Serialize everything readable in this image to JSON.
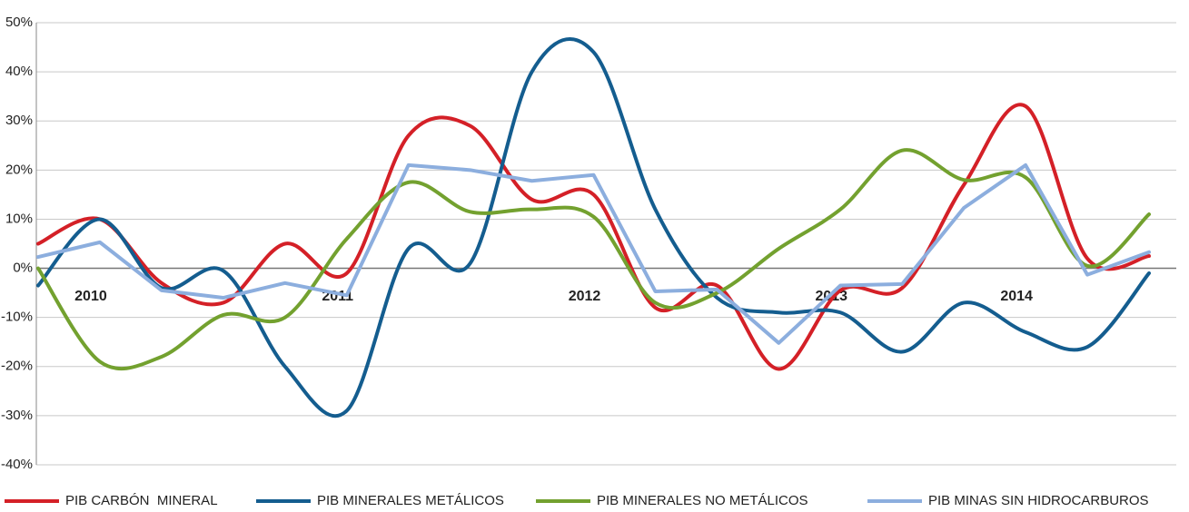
{
  "chart_data": {
    "type": "line",
    "categories": [
      null,
      "2010",
      null,
      null,
      null,
      "2011",
      null,
      null,
      null,
      "2012",
      null,
      null,
      null,
      "2013",
      null,
      null,
      "2014",
      null,
      null
    ],
    "series": [
      {
        "name": "PIB CARBÓN  MINERAL",
        "color": "#d42027",
        "smooth": true,
        "values": [
          5,
          10,
          -3,
          -7,
          5,
          -1,
          27,
          29,
          14,
          15,
          -8,
          -3.5,
          -20.5,
          -4.5,
          -4,
          17,
          33,
          2,
          2.5
        ]
      },
      {
        "name": "PIB MINERALES METÁLICOS",
        "color": "#145d8f",
        "smooth": true,
        "values": [
          -3.5,
          10,
          -4,
          -0.5,
          -20,
          -29,
          4,
          1,
          40,
          44,
          12,
          -6,
          -9,
          -9,
          -17,
          -7,
          -13,
          -16,
          -1
        ]
      },
      {
        "name": "PIB MINERALES NO METÁLICOS",
        "color": "#73a12f",
        "smooth": true,
        "values": [
          0,
          -19,
          -18,
          -9.5,
          -10,
          6,
          17.5,
          11.5,
          12,
          10.5,
          -7,
          -5,
          4,
          12,
          24,
          18,
          18.5,
          0.5,
          11
        ]
      },
      {
        "name": "PIB MINAS SIN HIDROCARBUROS",
        "color": "#8caede",
        "smooth": false,
        "values": [
          2.3,
          5.3,
          -4.5,
          -6,
          -3,
          -5.5,
          21,
          20,
          17.8,
          19,
          -4.7,
          -4.3,
          -15.2,
          -3.5,
          -3.2,
          12.3,
          21,
          -1.3,
          3.3
        ]
      }
    ],
    "ylim": [
      -40,
      50
    ],
    "yticks": [
      {
        "value": -40,
        "label": "-40%"
      },
      {
        "value": -30,
        "label": "-30%"
      },
      {
        "value": -20,
        "label": "-20%"
      },
      {
        "value": -10,
        "label": "-10%"
      },
      {
        "value": 0,
        "label": "0%"
      },
      {
        "value": 10,
        "label": "10%"
      },
      {
        "value": 20,
        "label": "20%"
      },
      {
        "value": 30,
        "label": "30%"
      },
      {
        "value": 40,
        "label": "40%"
      },
      {
        "value": 50,
        "label": "50%"
      }
    ],
    "grid": true,
    "legend": "bottom"
  }
}
